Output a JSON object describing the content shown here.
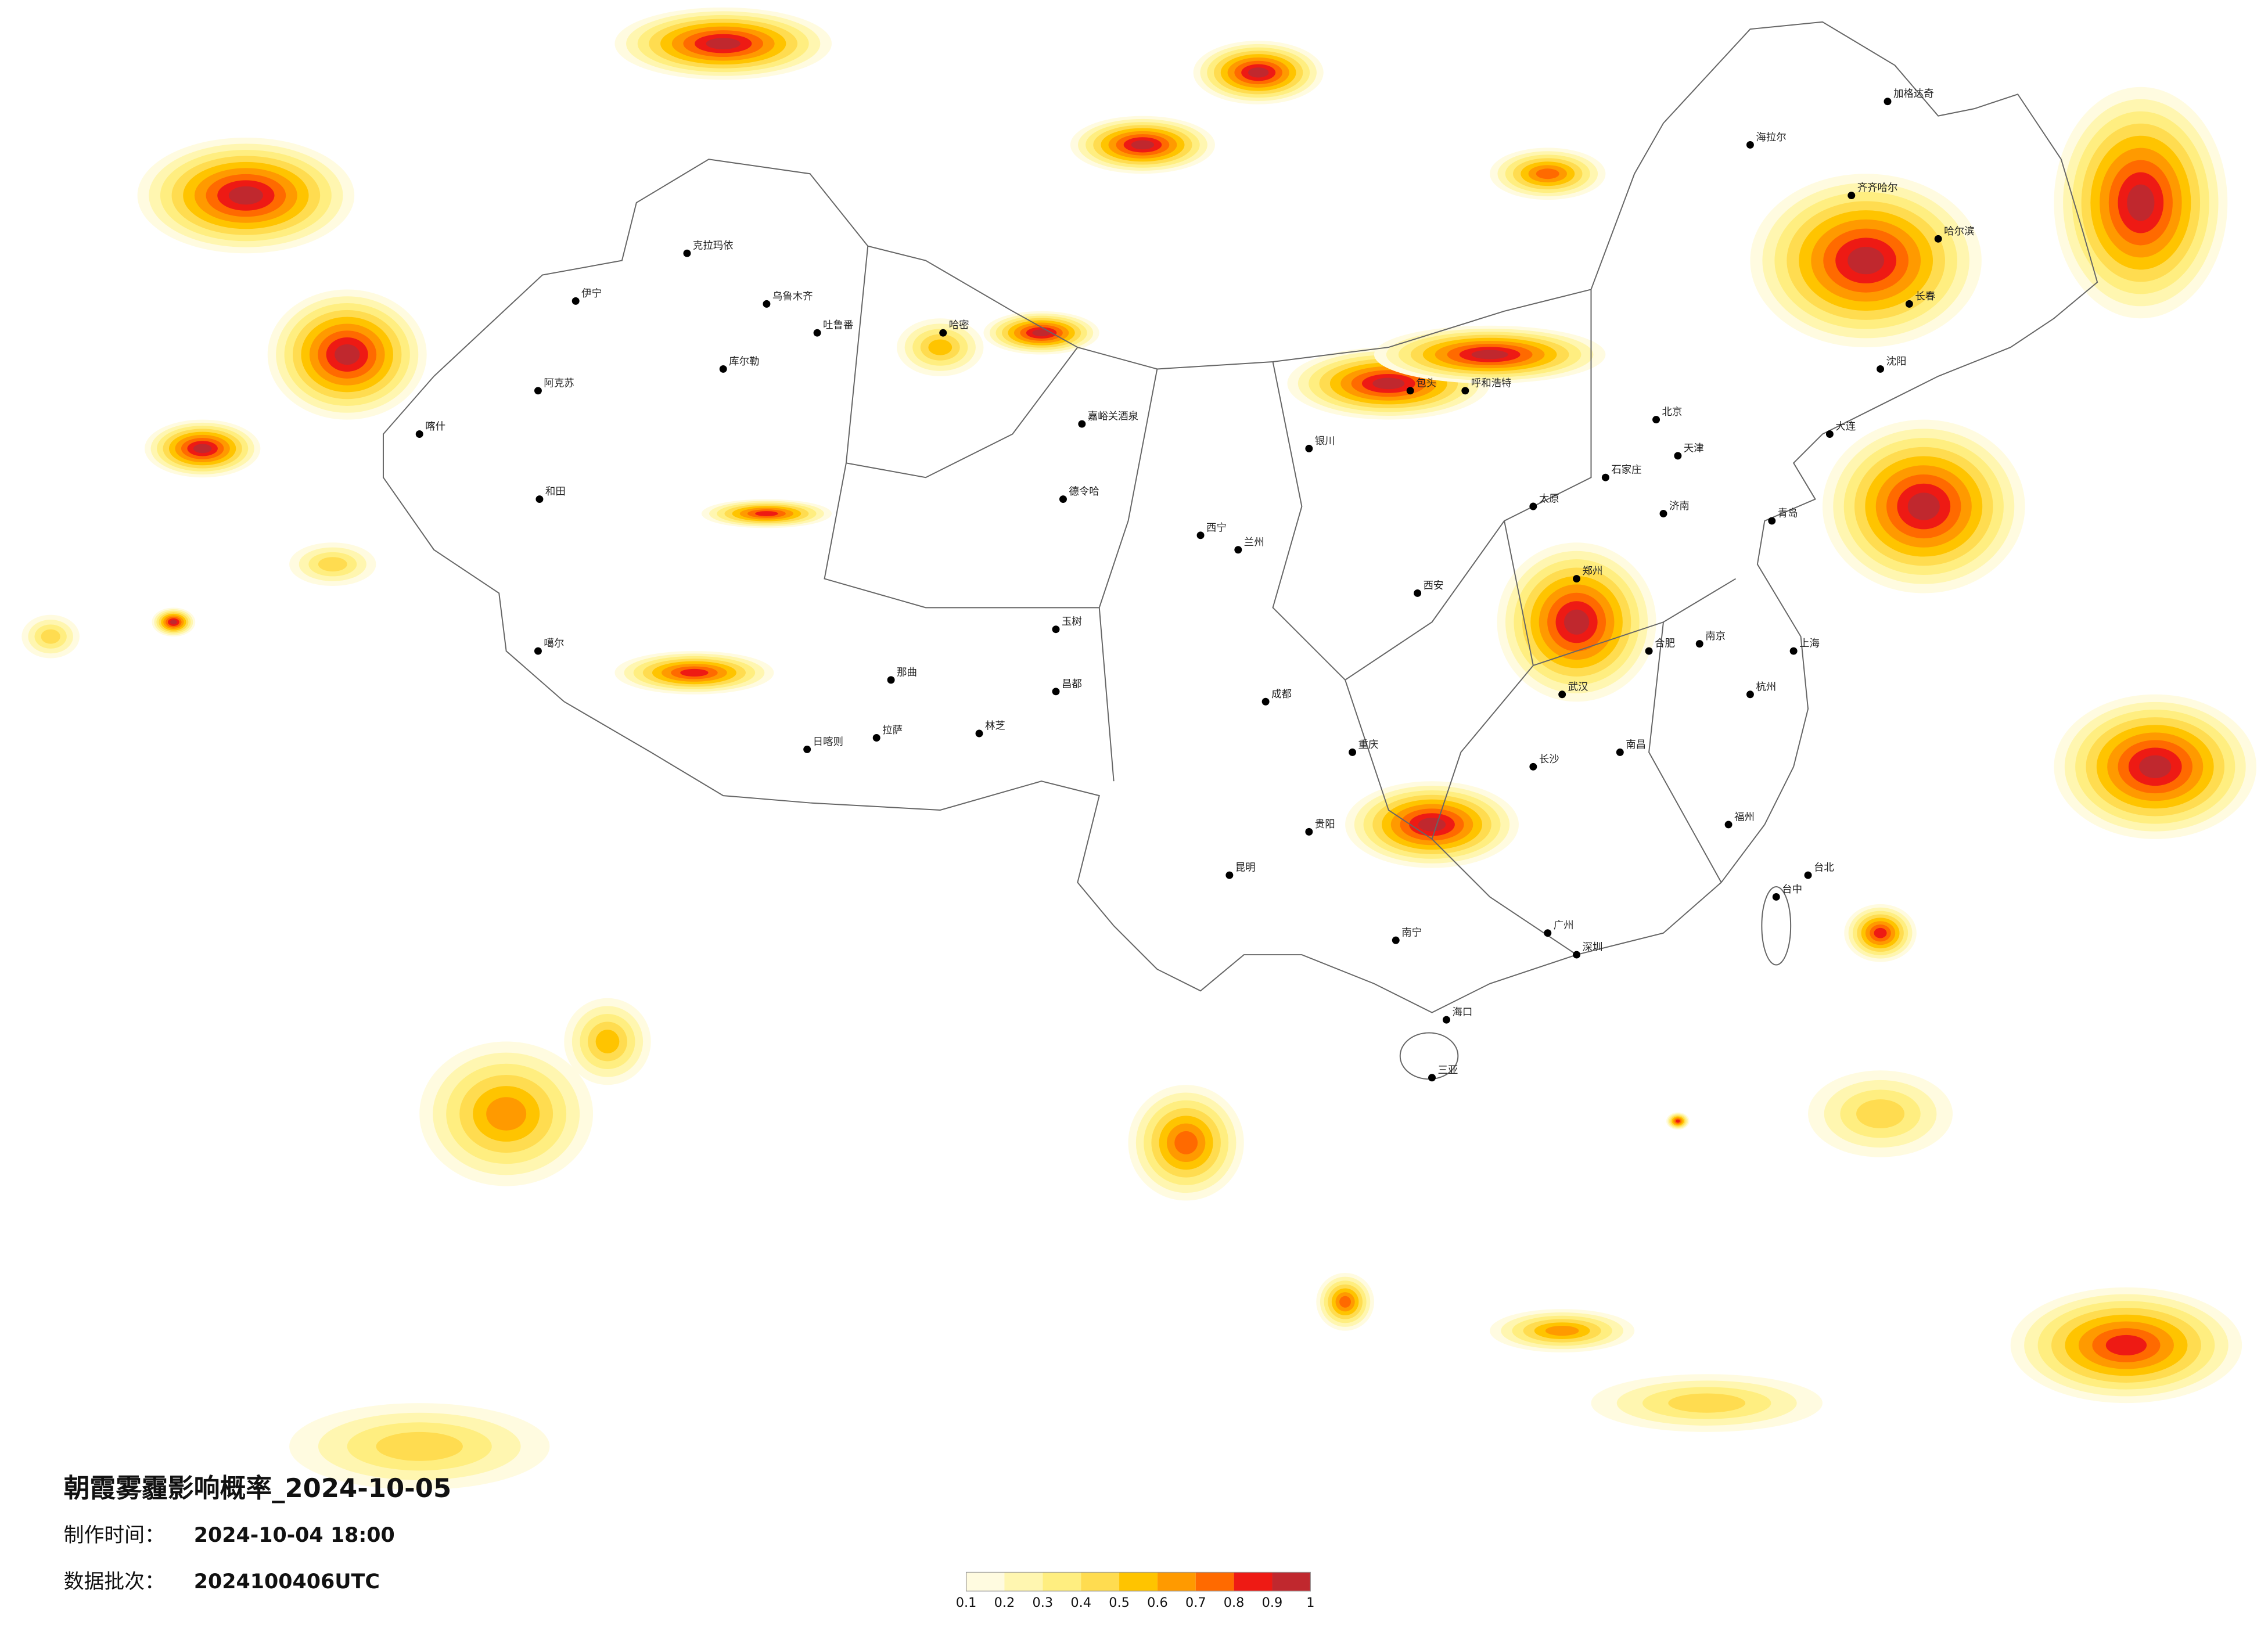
{
  "header": {
    "title": "朝霞雾霾影响概率_2024-10-05",
    "made_label": "制作时间：",
    "made_time": "2024-10-04 18:00",
    "batch_label": "数据批次：",
    "batch": "2024100406UTC"
  },
  "legend": {
    "ticks": [
      0.1,
      0.2,
      0.3,
      0.4,
      0.5,
      0.6,
      0.7,
      0.8,
      0.9,
      1
    ],
    "colors": [
      "#fffbe0",
      "#fff6b0",
      "#ffee80",
      "#ffdc50",
      "#ffc400",
      "#ff9a00",
      "#ff6a00",
      "#ee1a14",
      "#c0282e"
    ]
  },
  "cities": [
    "伊宁",
    "阿克苏",
    "喀什",
    "和田",
    "克拉玛依",
    "乌鲁木齐",
    "吐鲁番",
    "库尔勒",
    "哈密",
    "噶尔",
    "拉萨",
    "日喀则",
    "林芝",
    "那曲",
    "昌都",
    "嘉峪关酒泉",
    "德令哈",
    "玉树",
    "西宁",
    "兰州",
    "银川",
    "包头",
    "呼和浩特",
    "北京",
    "天津",
    "石家庄",
    "太原",
    "济南",
    "郑州",
    "西安",
    "成都",
    "重庆",
    "贵阳",
    "昆明",
    "南宁",
    "广州",
    "深圳",
    "福州",
    "台北",
    "台中",
    "杭州",
    "上海",
    "南京",
    "合肥",
    "武汉",
    "长沙",
    "南昌",
    "海口",
    "三亚",
    "沈阳",
    "长春",
    "哈尔滨",
    "齐齐哈尔",
    "海拉尔",
    "加格达奇",
    "大连",
    "青岛"
  ]
}
